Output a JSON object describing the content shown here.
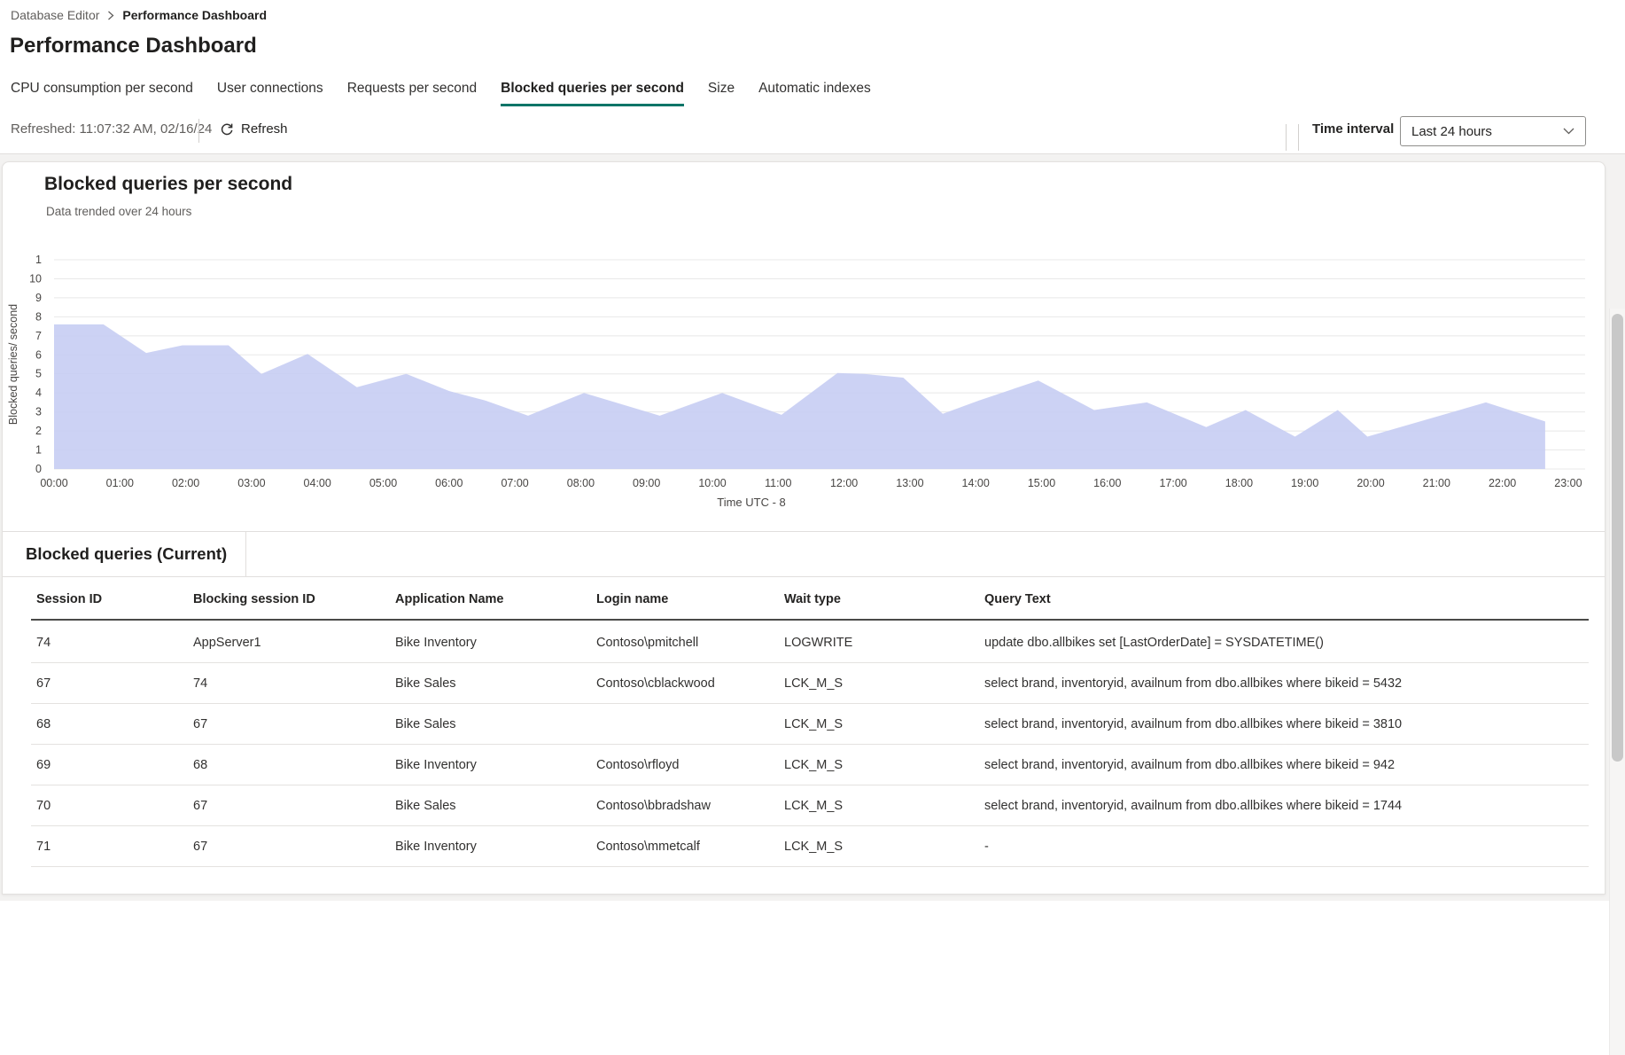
{
  "breadcrumb": {
    "items": [
      {
        "label": "Database Editor"
      },
      {
        "label": "Performance Dashboard"
      }
    ]
  },
  "page": {
    "title": "Performance Dashboard"
  },
  "tabs": [
    {
      "label": "CPU consumption per second",
      "active": false
    },
    {
      "label": "User connections",
      "active": false
    },
    {
      "label": "Requests per second",
      "active": false
    },
    {
      "label": "Blocked queries per second",
      "active": true
    },
    {
      "label": "Size",
      "active": false
    },
    {
      "label": "Automatic indexes",
      "active": false
    }
  ],
  "toolbar": {
    "refreshed": "Refreshed: 11:07:32 AM, 02/16/24",
    "refresh_label": "Refresh",
    "time_interval_label": "Time interval",
    "time_interval_value": "Last 24 hours"
  },
  "colors": {
    "accent_teal": "#0e7568",
    "area_fill": "#c5ccf3",
    "grid_line": "#e8e8e8",
    "axis_text": "#484644"
  },
  "chart": {
    "title": "Blocked queries per second",
    "subtitle": "Data trended over 24 hours"
  },
  "chart_data": {
    "type": "area",
    "title": "Blocked queries per second",
    "xlabel": "Time UTC - 8",
    "ylabel": "Blocked queries/ second",
    "ylim": [
      0,
      11
    ],
    "grid": true,
    "legend": "none",
    "y_tick_labels": [
      "1",
      "10",
      "9",
      "8",
      "7",
      "6",
      "5",
      "4",
      "3",
      "2",
      "1",
      "0"
    ],
    "x_ticks": [
      "00:00",
      "01:00",
      "02:00",
      "03:00",
      "04:00",
      "05:00",
      "06:00",
      "07:00",
      "08:00",
      "09:00",
      "10:00",
      "11:00",
      "12:00",
      "13:00",
      "14:00",
      "15:00",
      "16:00",
      "17:00",
      "18:00",
      "19:00",
      "20:00",
      "21:00",
      "22:00",
      "23:00"
    ],
    "points": [
      {
        "t": 0.0,
        "v": 7.6
      },
      {
        "t": 0.75,
        "v": 7.6
      },
      {
        "t": 1.4,
        "v": 6.1
      },
      {
        "t": 1.95,
        "v": 6.5
      },
      {
        "t": 2.65,
        "v": 6.5
      },
      {
        "t": 3.15,
        "v": 5.0
      },
      {
        "t": 3.85,
        "v": 6.05
      },
      {
        "t": 4.6,
        "v": 4.3
      },
      {
        "t": 5.35,
        "v": 5.0
      },
      {
        "t": 6.0,
        "v": 4.1
      },
      {
        "t": 6.55,
        "v": 3.6
      },
      {
        "t": 7.2,
        "v": 2.8
      },
      {
        "t": 8.05,
        "v": 4.0
      },
      {
        "t": 9.2,
        "v": 2.8
      },
      {
        "t": 10.15,
        "v": 4.0
      },
      {
        "t": 11.05,
        "v": 2.85
      },
      {
        "t": 11.9,
        "v": 5.05
      },
      {
        "t": 12.3,
        "v": 5.0
      },
      {
        "t": 12.9,
        "v": 4.8
      },
      {
        "t": 13.5,
        "v": 2.9
      },
      {
        "t": 14.05,
        "v": 3.6
      },
      {
        "t": 14.95,
        "v": 4.65
      },
      {
        "t": 15.8,
        "v": 3.1
      },
      {
        "t": 16.6,
        "v": 3.5
      },
      {
        "t": 17.5,
        "v": 2.2
      },
      {
        "t": 18.1,
        "v": 3.1
      },
      {
        "t": 18.85,
        "v": 1.7
      },
      {
        "t": 19.5,
        "v": 3.1
      },
      {
        "t": 19.95,
        "v": 1.7
      },
      {
        "t": 21.75,
        "v": 3.5
      },
      {
        "t": 22.65,
        "v": 2.5
      }
    ]
  },
  "table": {
    "section_title": "Blocked queries (Current)",
    "columns": [
      "Session ID",
      "Blocking session ID",
      "Application Name",
      "Login name",
      "Wait type",
      "Query Text"
    ],
    "rows": [
      [
        "74",
        "AppServer1",
        "Bike Inventory",
        "Contoso\\pmitchell",
        "LOGWRITE",
        "update  dbo.allbikes  set [LastOrderDate] = SYSDATETIME()"
      ],
      [
        "67",
        "74",
        "Bike Sales",
        "Contoso\\cblackwood",
        "LCK_M_S",
        "select brand, inventoryid, availnum  from dbo.allbikes where bikeid = 5432"
      ],
      [
        "68",
        "67",
        "Bike Sales",
        "",
        "LCK_M_S",
        "select brand, inventoryid, availnum  from dbo.allbikes where bikeid = 3810"
      ],
      [
        "69",
        "68",
        "Bike Inventory",
        "Contoso\\rfloyd",
        "LCK_M_S",
        "select brand, inventoryid, availnum  from dbo.allbikes where bikeid = 942"
      ],
      [
        "70",
        "67",
        "Bike Sales",
        "Contoso\\bbradshaw",
        "LCK_M_S",
        "select brand, inventoryid, availnum  from dbo.allbikes where bikeid = 1744"
      ],
      [
        "71",
        "67",
        "Bike Inventory",
        "Contoso\\mmetcalf",
        "LCK_M_S",
        "-"
      ]
    ]
  }
}
